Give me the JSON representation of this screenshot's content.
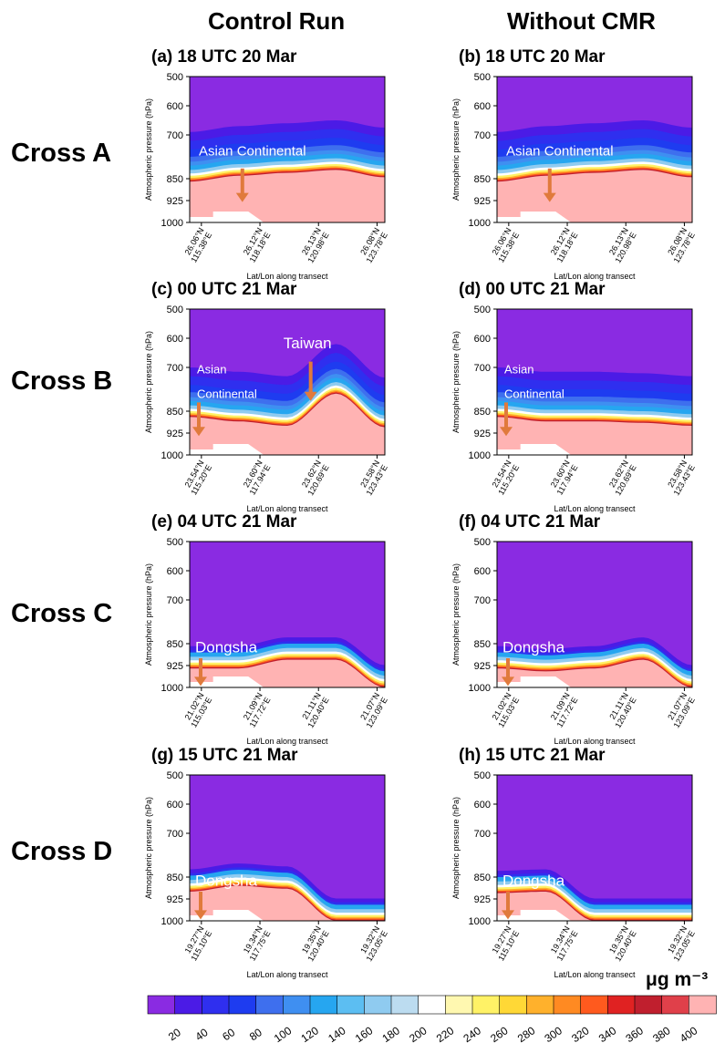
{
  "headers": {
    "left": "Control Run",
    "right": "Without CMR"
  },
  "rows": [
    "Cross A",
    "Cross B",
    "Cross C",
    "Cross D"
  ],
  "unit_label": "μg m⁻³",
  "colorbar": {
    "ticks": [
      "20",
      "40",
      "60",
      "80",
      "100",
      "120",
      "140",
      "160",
      "180",
      "200",
      "220",
      "240",
      "260",
      "280",
      "300",
      "320",
      "340",
      "360",
      "380",
      "400"
    ],
    "colors": [
      "#8a2be2",
      "#4b1be6",
      "#2f2fef",
      "#1e3cf0",
      "#3e6fee",
      "#3f8ff1",
      "#26a6f0",
      "#5cbef2",
      "#8fcbf0",
      "#bcdcf0",
      "#ffffff",
      "#fff8b0",
      "#fff266",
      "#ffd836",
      "#ffb12c",
      "#ff8a22",
      "#ff5a1e",
      "#e02222",
      "#c01f2e",
      "#e0404a",
      "#ffb3b3"
    ]
  },
  "axis": {
    "ylabel": "Atmospheric pressure (hPa)",
    "xlabel": "Lat/Lon along transect",
    "yticks": [
      "500",
      "600",
      "700",
      "850",
      "925",
      "1000"
    ]
  },
  "panels": [
    {
      "id": "a",
      "label": "(a)",
      "time": "18 UTC 20 Mar",
      "annotations": [
        "Asian Continental"
      ],
      "xticks": [
        [
          "26.06°N",
          "115.38°E"
        ],
        [
          "26.12°N",
          "118.18°E"
        ],
        [
          "26.13°N",
          "120.98°E"
        ],
        [
          "26.08°N",
          "123.78°E"
        ]
      ]
    },
    {
      "id": "b",
      "label": "(b)",
      "time": "18 UTC 20 Mar",
      "annotations": [
        "Asian Continental"
      ],
      "xticks": [
        [
          "26.06°N",
          "115.38°E"
        ],
        [
          "26.12°N",
          "118.18°E"
        ],
        [
          "26.13°N",
          "120.98°E"
        ],
        [
          "26.08°N",
          "123.78°E"
        ]
      ]
    },
    {
      "id": "c",
      "label": "(c)",
      "time": "00 UTC 21 Mar",
      "annotations": [
        "Asian",
        "Continental",
        "Taiwan"
      ],
      "xticks": [
        [
          "23.54°N",
          "115.20°E"
        ],
        [
          "23.60°N",
          "117.94°E"
        ],
        [
          "23.62°N",
          "120.69°E"
        ],
        [
          "23.58°N",
          "123.43°E"
        ]
      ]
    },
    {
      "id": "d",
      "label": "(d)",
      "time": "00 UTC 21 Mar",
      "annotations": [
        "Asian",
        "Continental"
      ],
      "xticks": [
        [
          "23.54°N",
          "115.20°E"
        ],
        [
          "23.60°N",
          "117.94°E"
        ],
        [
          "23.62°N",
          "120.69°E"
        ],
        [
          "23.58°N",
          "123.43°E"
        ]
      ]
    },
    {
      "id": "e",
      "label": "(e)",
      "time": "04 UTC 21 Mar",
      "annotations": [
        "Dongsha"
      ],
      "xticks": [
        [
          "21.02°N",
          "115.03°E"
        ],
        [
          "21.09°N",
          "117.72°E"
        ],
        [
          "21.11°N",
          "120.40°E"
        ],
        [
          "21.07°N",
          "123.09°E"
        ]
      ]
    },
    {
      "id": "f",
      "label": "(f)",
      "time": "04 UTC 21 Mar",
      "annotations": [
        "Dongsha"
      ],
      "xticks": [
        [
          "21.02°N",
          "115.03°E"
        ],
        [
          "21.09°N",
          "117.72°E"
        ],
        [
          "21.11°N",
          "120.40°E"
        ],
        [
          "21.07°N",
          "123.09°E"
        ]
      ]
    },
    {
      "id": "g",
      "label": "(g)",
      "time": "15 UTC 21 Mar",
      "annotations": [
        "Dongsha"
      ],
      "xticks": [
        [
          "19.27°N",
          "115.10°E"
        ],
        [
          "19.34°N",
          "117.75°E"
        ],
        [
          "19.35°N",
          "120.40°E"
        ],
        [
          "19.32°N",
          "123.05°E"
        ]
      ]
    },
    {
      "id": "h",
      "label": "(h)",
      "time": "15 UTC 21 Mar",
      "annotations": [
        "Dongsha"
      ],
      "xticks": [
        [
          "19.27°N",
          "115.10°E"
        ],
        [
          "19.34°N",
          "117.75°E"
        ],
        [
          "19.35°N",
          "120.40°E"
        ],
        [
          "19.32°N",
          "123.05°E"
        ]
      ]
    }
  ],
  "chart_data": {
    "type": "heatmap",
    "variable": "concentration",
    "unit": "μg m⁻³",
    "ylabel": "Atmospheric pressure (hPa)",
    "xlabel": "Lat/Lon along transect",
    "y_levels_hPa": [
      500,
      600,
      700,
      850,
      925,
      1000
    ],
    "color_levels": [
      20,
      40,
      60,
      80,
      100,
      120,
      140,
      160,
      180,
      200,
      220,
      240,
      260,
      280,
      300,
      320,
      340,
      360,
      380,
      400
    ],
    "panels": [
      {
        "panel": "a",
        "run": "Control Run",
        "cross": "Cross A",
        "time": "18 UTC 20 Mar",
        "polluted_layer_top_hPa": [
          860,
          840,
          830,
          820,
          845
        ],
        "transect_positions": [
          0,
          0.25,
          0.5,
          0.75,
          1.0
        ]
      },
      {
        "panel": "b",
        "run": "Without CMR",
        "cross": "Cross A",
        "time": "18 UTC 20 Mar",
        "polluted_layer_top_hPa": [
          860,
          840,
          830,
          820,
          845
        ],
        "transect_positions": [
          0,
          0.25,
          0.5,
          0.75,
          1.0
        ]
      },
      {
        "panel": "c",
        "run": "Control Run",
        "cross": "Cross B",
        "time": "00 UTC 21 Mar",
        "polluted_layer_top_hPa": [
          870,
          885,
          900,
          790,
          905
        ],
        "transect_positions": [
          0,
          0.25,
          0.5,
          0.75,
          1.0
        ]
      },
      {
        "panel": "d",
        "run": "Without CMR",
        "cross": "Cross B",
        "time": "00 UTC 21 Mar",
        "polluted_layer_top_hPa": [
          870,
          885,
          885,
          890,
          900
        ],
        "transect_positions": [
          0,
          0.25,
          0.5,
          0.75,
          1.0
        ]
      },
      {
        "panel": "e",
        "run": "Control Run",
        "cross": "Cross C",
        "time": "04 UTC 21 Mar",
        "polluted_layer_top_hPa": [
          935,
          935,
          905,
          905,
          1000
        ],
        "transect_positions": [
          0,
          0.25,
          0.5,
          0.75,
          1.0
        ]
      },
      {
        "panel": "f",
        "run": "Without CMR",
        "cross": "Cross C",
        "time": "04 UTC 21 Mar",
        "polluted_layer_top_hPa": [
          935,
          945,
          935,
          905,
          1000
        ],
        "transect_positions": [
          0,
          0.25,
          0.5,
          0.75,
          1.0
        ]
      },
      {
        "panel": "g",
        "run": "Control Run",
        "cross": "Cross D",
        "time": "15 UTC 21 Mar",
        "polluted_layer_top_hPa": [
          900,
          880,
          890,
          1000,
          1000
        ],
        "transect_positions": [
          0,
          0.25,
          0.5,
          0.75,
          1.0
        ]
      },
      {
        "panel": "h",
        "run": "Without CMR",
        "cross": "Cross D",
        "time": "15 UTC 21 Mar",
        "polluted_layer_top_hPa": [
          905,
          900,
          1000,
          1000,
          1000
        ],
        "transect_positions": [
          0,
          0.25,
          0.5,
          0.75,
          1.0
        ]
      }
    ]
  }
}
